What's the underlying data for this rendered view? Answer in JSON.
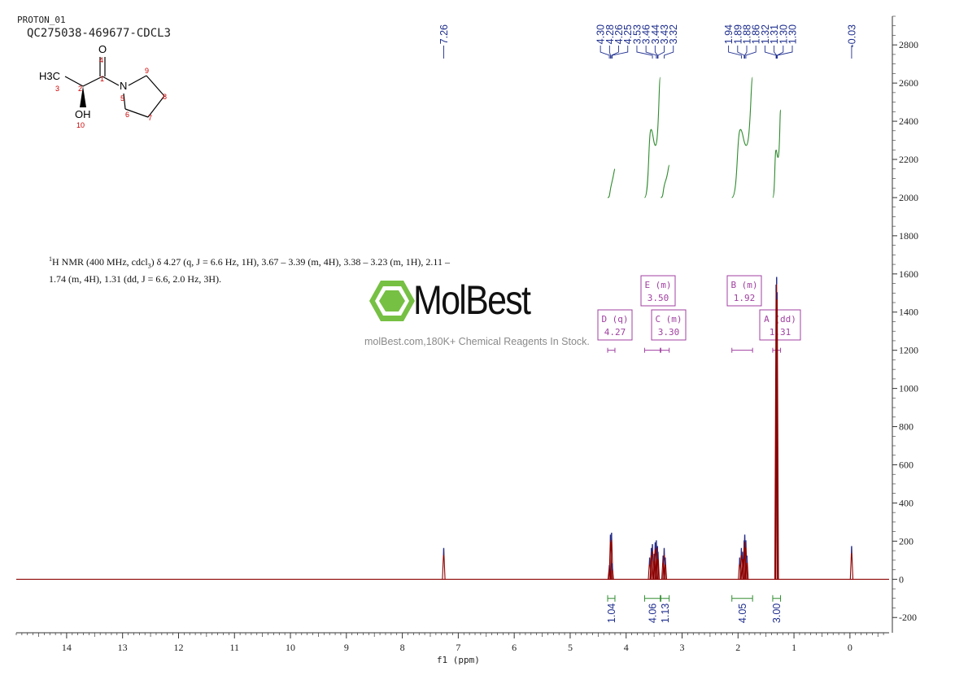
{
  "header": {
    "experiment": "PROTON_01",
    "sample": "QC275038-469677-CDCL3"
  },
  "description": {
    "prefix": "H NMR (400 MHz, cdcl",
    "line1": "δ 4.27 (q, J = 6.6 Hz, 1H), 3.67 – 3.39 (m, 4H), 3.38 – 3.23 (m, 1H), 2.11 –",
    "line2": "1.74 (m, 4H), 1.31 (dd, J = 6.6, 2.0 Hz, 3H)."
  },
  "watermark": {
    "brand": "MolBest",
    "tagline": "molBest.com,180K+ Chemical Reagents In Stock."
  },
  "structure": {
    "atoms": [
      {
        "label": "H3C",
        "number": "3"
      },
      {
        "label": "",
        "number": "2"
      },
      {
        "label": "O",
        "number": "4"
      },
      {
        "label": "",
        "number": "1"
      },
      {
        "label": "N",
        "number": "5"
      },
      {
        "label": "",
        "number": "9"
      },
      {
        "label": "",
        "number": "8"
      },
      {
        "label": "",
        "number": "7"
      },
      {
        "label": "",
        "number": "6"
      },
      {
        "label": "OH",
        "number": "10"
      }
    ]
  },
  "colors": {
    "spectrum": "#8b0000",
    "integral": "#2e8b2e",
    "peak_label": "#1f2f8f",
    "multiplet_box": "#a040a0",
    "axis": "#333333",
    "atom_number": "#cc0000"
  },
  "chart_data": {
    "type": "line",
    "title": "",
    "xlabel": "f1 (ppm)",
    "ylabel": "",
    "xlim": [
      14.9,
      -0.7
    ],
    "ylim": [
      -280,
      2950
    ],
    "x_ticks": [
      14,
      13,
      12,
      11,
      10,
      9,
      8,
      7,
      6,
      5,
      4,
      3,
      2,
      1,
      0
    ],
    "y_ticks": [
      2800,
      2600,
      2400,
      2200,
      2000,
      1800,
      1600,
      1400,
      1200,
      1000,
      800,
      600,
      400,
      200,
      0,
      -200
    ],
    "peak_labels": [
      "7.26",
      "4.30",
      "4.28",
      "4.26",
      "4.25",
      "3.53",
      "3.46",
      "3.44",
      "3.43",
      "3.32",
      "1.94",
      "1.89",
      "1.88",
      "1.86",
      "1.32",
      "1.31",
      "1.30",
      "1.30",
      "-0.03"
    ],
    "peaks": [
      {
        "ppm": 7.26,
        "height": 160
      },
      {
        "ppm": 4.3,
        "height": 70
      },
      {
        "ppm": 4.28,
        "height": 230
      },
      {
        "ppm": 4.26,
        "height": 240
      },
      {
        "ppm": 4.25,
        "height": 80
      },
      {
        "ppm": 3.58,
        "height": 110
      },
      {
        "ppm": 3.55,
        "height": 160
      },
      {
        "ppm": 3.53,
        "height": 180
      },
      {
        "ppm": 3.5,
        "height": 130
      },
      {
        "ppm": 3.48,
        "height": 190
      },
      {
        "ppm": 3.46,
        "height": 200
      },
      {
        "ppm": 3.44,
        "height": 170
      },
      {
        "ppm": 3.43,
        "height": 140
      },
      {
        "ppm": 3.34,
        "height": 120
      },
      {
        "ppm": 3.32,
        "height": 160
      },
      {
        "ppm": 3.3,
        "height": 110
      },
      {
        "ppm": 1.97,
        "height": 110
      },
      {
        "ppm": 1.94,
        "height": 160
      },
      {
        "ppm": 1.92,
        "height": 140
      },
      {
        "ppm": 1.89,
        "height": 200
      },
      {
        "ppm": 1.88,
        "height": 230
      },
      {
        "ppm": 1.86,
        "height": 200
      },
      {
        "ppm": 1.84,
        "height": 120
      },
      {
        "ppm": 1.32,
        "height": 1540
      },
      {
        "ppm": 1.31,
        "height": 1580
      },
      {
        "ppm": 1.3,
        "height": 1500
      },
      {
        "ppm": -0.03,
        "height": 170
      }
    ],
    "integrals": [
      {
        "from": 4.33,
        "to": 4.2,
        "value": "1.04",
        "y_start": 2000,
        "y_end": 2150
      },
      {
        "from": 3.67,
        "to": 3.39,
        "value": "4.06",
        "y_start": 2000,
        "y_end": 2630
      },
      {
        "from": 3.38,
        "to": 3.23,
        "value": "1.13",
        "y_start": 2000,
        "y_end": 2170
      },
      {
        "from": 2.11,
        "to": 1.74,
        "value": "4.05",
        "y_start": 2000,
        "y_end": 2630
      },
      {
        "from": 1.38,
        "to": 1.24,
        "value": "3.00",
        "y_start": 2000,
        "y_end": 2460
      }
    ],
    "multiplets": [
      {
        "id": "D",
        "mult": "(q)",
        "shift": "4.27",
        "from": 4.33,
        "to": 4.2
      },
      {
        "id": "E",
        "mult": "(m)",
        "shift": "3.50",
        "from": 3.67,
        "to": 3.39
      },
      {
        "id": "C",
        "mult": "(m)",
        "shift": "3.30",
        "from": 3.38,
        "to": 3.23
      },
      {
        "id": "B",
        "mult": "(m)",
        "shift": "1.92",
        "from": 2.11,
        "to": 1.74
      },
      {
        "id": "A",
        "mult": "(dd)",
        "shift": "1.31",
        "from": 1.38,
        "to": 1.24
      }
    ]
  }
}
